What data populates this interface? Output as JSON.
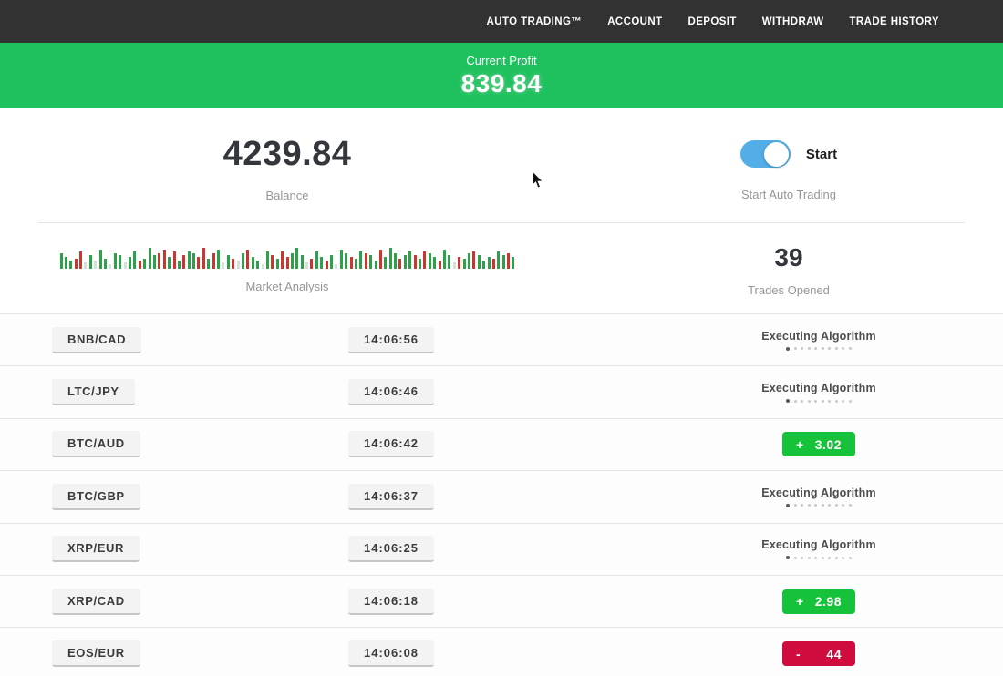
{
  "navbar": {
    "items": [
      {
        "label": "AUTO TRADING™"
      },
      {
        "label": "ACCOUNT"
      },
      {
        "label": "DEPOSIT"
      },
      {
        "label": "WITHDRAW"
      },
      {
        "label": "TRADE HISTORY"
      }
    ]
  },
  "profit_banner": {
    "label": "Current Profit",
    "value": "839.84"
  },
  "stats": {
    "balance": {
      "value": "4239.84",
      "label": "Balance"
    },
    "auto_trading": {
      "toggle_label": "Start",
      "label": "Start Auto Trading",
      "enabled": true
    },
    "market_analysis": {
      "label": "Market Analysis",
      "bars": [
        [
          "g",
          17
        ],
        [
          "g",
          13
        ],
        [
          "g",
          9
        ],
        [
          "r",
          11
        ],
        [
          "r",
          19
        ],
        [
          "p",
          7
        ],
        [
          "g",
          15
        ],
        [
          "p",
          9
        ],
        [
          "g",
          21
        ],
        [
          "g",
          11
        ],
        [
          "p",
          5
        ],
        [
          "g",
          17
        ],
        [
          "g",
          15
        ],
        [
          "p",
          7
        ],
        [
          "g",
          13
        ],
        [
          "g",
          19
        ],
        [
          "r",
          9
        ],
        [
          "g",
          11
        ],
        [
          "g",
          23
        ],
        [
          "g",
          15
        ],
        [
          "r",
          17
        ],
        [
          "r",
          21
        ],
        [
          "g",
          13
        ],
        [
          "r",
          19
        ],
        [
          "g",
          9
        ],
        [
          "r",
          15
        ],
        [
          "g",
          19
        ],
        [
          "g",
          17
        ],
        [
          "r",
          13
        ],
        [
          "r",
          23
        ],
        [
          "g",
          11
        ],
        [
          "r",
          17
        ],
        [
          "g",
          21
        ],
        [
          "p",
          7
        ],
        [
          "g",
          15
        ],
        [
          "r",
          11
        ],
        [
          "p",
          9
        ],
        [
          "g",
          17
        ],
        [
          "r",
          21
        ],
        [
          "g",
          13
        ],
        [
          "g",
          9
        ],
        [
          "p",
          5
        ],
        [
          "g",
          19
        ],
        [
          "r",
          15
        ],
        [
          "g",
          11
        ],
        [
          "r",
          19
        ],
        [
          "r",
          13
        ],
        [
          "g",
          17
        ],
        [
          "g",
          23
        ],
        [
          "g",
          15
        ],
        [
          "p",
          7
        ],
        [
          "r",
          11
        ],
        [
          "g",
          19
        ],
        [
          "g",
          13
        ],
        [
          "r",
          9
        ],
        [
          "g",
          15
        ],
        [
          "p",
          5
        ],
        [
          "g",
          21
        ],
        [
          "g",
          17
        ],
        [
          "r",
          13
        ],
        [
          "g",
          11
        ],
        [
          "g",
          19
        ],
        [
          "r",
          17
        ],
        [
          "g",
          15
        ],
        [
          "g",
          9
        ],
        [
          "r",
          21
        ],
        [
          "g",
          13
        ],
        [
          "g",
          23
        ],
        [
          "g",
          17
        ],
        [
          "r",
          11
        ],
        [
          "g",
          15
        ],
        [
          "g",
          19
        ],
        [
          "r",
          15
        ],
        [
          "g",
          11
        ],
        [
          "r",
          19
        ],
        [
          "g",
          17
        ],
        [
          "g",
          13
        ],
        [
          "r",
          9
        ],
        [
          "g",
          21
        ],
        [
          "g",
          15
        ],
        [
          "p",
          7
        ],
        [
          "r",
          13
        ],
        [
          "g",
          11
        ],
        [
          "g",
          17
        ],
        [
          "r",
          19
        ],
        [
          "g",
          15
        ],
        [
          "g",
          9
        ],
        [
          "g",
          13
        ],
        [
          "r",
          11
        ],
        [
          "g",
          19
        ],
        [
          "g",
          15
        ],
        [
          "r",
          17
        ],
        [
          "g",
          13
        ]
      ]
    },
    "trades_opened": {
      "value": "39",
      "label": "Trades Opened"
    }
  },
  "trades": [
    {
      "pair": "BNB/CAD",
      "time": "14:06:56",
      "status": "executing",
      "status_label": "Executing Algorithm"
    },
    {
      "pair": "LTC/JPY",
      "time": "14:06:46",
      "status": "executing",
      "status_label": "Executing Algorithm"
    },
    {
      "pair": "BTC/AUD",
      "time": "14:06:42",
      "status": "profit",
      "sign": "+",
      "value": "3.02"
    },
    {
      "pair": "BTC/GBP",
      "time": "14:06:37",
      "status": "executing",
      "status_label": "Executing Algorithm"
    },
    {
      "pair": "XRP/EUR",
      "time": "14:06:25",
      "status": "executing",
      "status_label": "Executing Algorithm"
    },
    {
      "pair": "XRP/CAD",
      "time": "14:06:18",
      "status": "profit",
      "sign": "+",
      "value": "2.98"
    },
    {
      "pair": "EOS/EUR",
      "time": "14:06:08",
      "status": "loss",
      "sign": "-",
      "value": "44"
    }
  ],
  "ui": {
    "progress_dots": 10
  },
  "colors": {
    "navbar_bg": "#323232",
    "banner_green": "#1fc05e",
    "badge_green": "#16c23a",
    "badge_red": "#ce0d3e",
    "toggle_blue": "#53ade6"
  }
}
